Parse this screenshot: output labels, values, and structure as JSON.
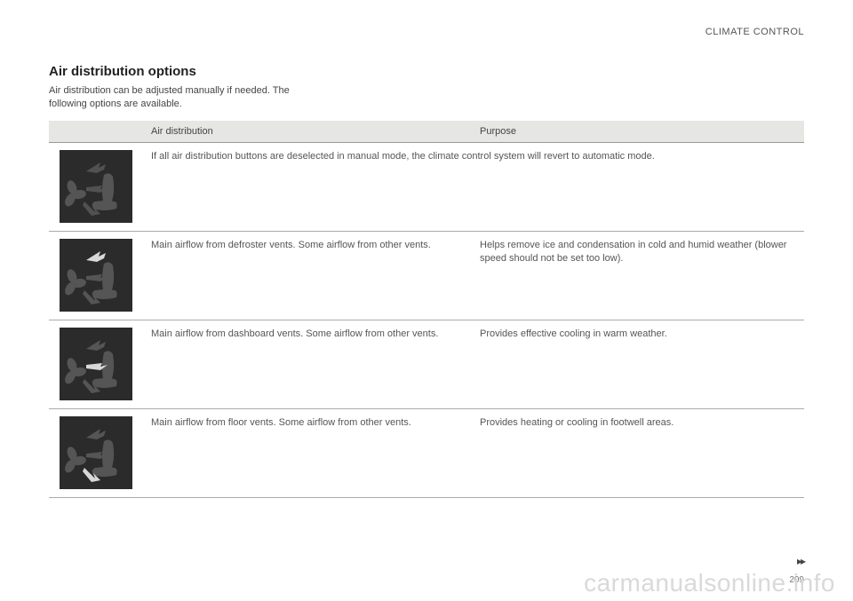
{
  "header": {
    "label": "CLIMATE CONTROL"
  },
  "section": {
    "title": "Air distribution options",
    "intro": "Air distribution can be adjusted manually if needed. The following options are available."
  },
  "table": {
    "columns": {
      "col1": "",
      "col2": "Air distribution",
      "col3": "Purpose"
    },
    "rows": [
      {
        "dist": "If all air distribution buttons are deselected in manual mode, the climate control system will revert to automatic mode.",
        "dist_span": true,
        "purpose": "",
        "highlight": "none"
      },
      {
        "dist": "Main airflow from defroster vents. Some airflow from other vents.",
        "purpose": "Helps remove ice and condensation in cold and humid weather (blower speed should not be set too low).",
        "highlight": "top"
      },
      {
        "dist": "Main airflow from dashboard vents. Some airflow from other vents.",
        "purpose": "Provides effective cooling in warm weather.",
        "highlight": "mid"
      },
      {
        "dist": "Main airflow from floor vents. Some airflow from other vents.",
        "purpose": "Provides heating or cooling in footwell areas.",
        "highlight": "bottom"
      }
    ]
  },
  "footer": {
    "page": "209",
    "continue": "▸▸"
  },
  "watermark": "carmanualsonline.info",
  "colors": {
    "icon_bg": "#2b2b2b",
    "icon_dim": "#555555",
    "icon_bright": "#d8d8d8",
    "header_bg": "#e6e7e3"
  }
}
